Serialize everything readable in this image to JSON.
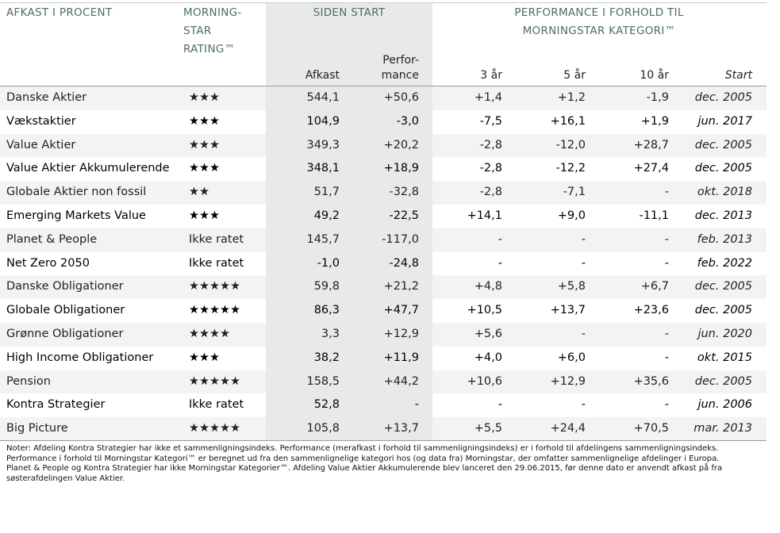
{
  "header": {
    "fund": [
      "AFKAST I PROCENT"
    ],
    "rating": [
      "MORNING-",
      "STAR",
      "RATING™"
    ],
    "since_start": [
      "SIDEN START"
    ],
    "relative": [
      "PERFORMANCE I FORHOLD TIL",
      "MORNINGSTAR KATEGORI™"
    ],
    "columns": [
      [
        "Afkast"
      ],
      [
        "Perfor-",
        "mance"
      ],
      [
        "3 år"
      ],
      [
        "5 år"
      ],
      [
        "10 år"
      ],
      [
        "Start"
      ]
    ]
  },
  "rows": [
    [
      "Danske Aktier",
      "★★★",
      "544,1",
      "+50,6",
      "+1,4",
      "+1,2",
      "-1,9",
      "dec. 2005"
    ],
    [
      "Vækstaktier",
      "★★★",
      "104,9",
      "-3,0",
      "-7,5",
      "+16,1",
      "+1,9",
      "jun. 2017"
    ],
    [
      "Value Aktier",
      "★★★",
      "349,3",
      "+20,2",
      "-2,8",
      "-12,0",
      "+28,7",
      "dec. 2005"
    ],
    [
      "Value Aktier Akkumulerende",
      "★★★",
      "348,1",
      "+18,9",
      "-2,8",
      "-12,2",
      "+27,4",
      "dec. 2005"
    ],
    [
      "Globale Aktier non fossil",
      "★★",
      "51,7",
      "-32,8",
      "-2,8",
      "-7,1",
      "-",
      "okt. 2018"
    ],
    [
      "Emerging Markets Value",
      "★★★",
      "49,2",
      "-22,5",
      "+14,1",
      "+9,0",
      "-11,1",
      "dec. 2013"
    ],
    [
      "Planet & People",
      "Ikke ratet",
      "145,7",
      "-117,0",
      "-",
      "-",
      "-",
      "feb. 2013"
    ],
    [
      "Net Zero 2050",
      "Ikke ratet",
      "-1,0",
      "-24,8",
      "-",
      "-",
      "-",
      "feb. 2022"
    ],
    [
      "Danske Obligationer",
      "★★★★★",
      "59,8",
      "+21,2",
      "+4,8",
      "+5,8",
      "+6,7",
      "dec. 2005"
    ],
    [
      "Globale Obligationer",
      "★★★★★",
      "86,3",
      "+47,7",
      "+10,5",
      "+13,7",
      "+23,6",
      "dec. 2005"
    ],
    [
      "Grønne Obligationer",
      "★★★★",
      "3,3",
      "+12,9",
      "+5,6",
      "-",
      "-",
      "jun. 2020"
    ],
    [
      "High Income Obligationer",
      "★★★",
      "38,2",
      "+11,9",
      "+4,0",
      "+6,0",
      "-",
      "okt. 2015"
    ],
    [
      "Pension",
      "★★★★★",
      "158,5",
      "+44,2",
      "+10,6",
      "+12,9",
      "+35,6",
      "dec. 2005"
    ],
    [
      "Kontra Strategier",
      "Ikke ratet",
      "52,8",
      "-",
      "-",
      "-",
      "-",
      "jun. 2006"
    ],
    [
      "Big Picture",
      "★★★★★",
      "105,8",
      "+13,7",
      "+5,5",
      "+24,4",
      "+70,5",
      "mar. 2013"
    ]
  ],
  "note": [
    "Noter: Afdeling Kontra Strategier har ikke et sammenligningsindeks. Performance (merafkast i forhold til sammenligningsindeks) er i forhold til afdelingens sammenligningsindeks.",
    "Performance i forhold til Morningstar Kategori™ er beregnet ud fra den sammenlignelige kategori hos (og data fra) Morningstar, der omfatter sammenlignelige afdelinger i Europa.",
    "Planet & People og Kontra Strategier har ikke Morningstar Kategorier™. Afdeling Value Aktier Akkumulerende blev lanceret den 29.06.2015, før denne dato er anvendt afkast på fra",
    "søsterafdelingen Value Aktier."
  ]
}
